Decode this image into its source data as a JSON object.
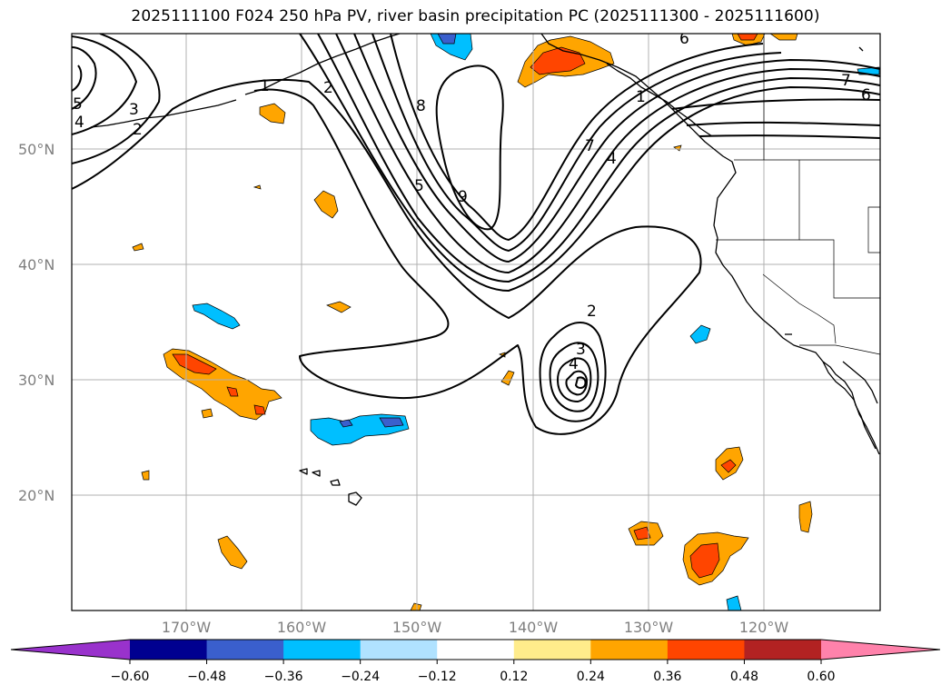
{
  "title": "2025111100 F024 250 hPa PV, river basin precipitation PC (2025111300 - 2025111600)",
  "map": {
    "lon_range": [
      -180,
      -110
    ],
    "lat_range": [
      10,
      60
    ],
    "lat_ticks": [
      {
        "value": 50,
        "label": "50°N"
      },
      {
        "value": 40,
        "label": "40°N"
      },
      {
        "value": 30,
        "label": "30°N"
      },
      {
        "value": 20,
        "label": "20°N"
      }
    ],
    "lon_ticks": [
      {
        "value": -170,
        "label": "170°W"
      },
      {
        "value": -160,
        "label": "160°W"
      },
      {
        "value": -150,
        "label": "150°W"
      },
      {
        "value": -140,
        "label": "140°W"
      },
      {
        "value": -130,
        "label": "130°W"
      },
      {
        "value": -120,
        "label": "120°W"
      }
    ],
    "contour_labels": [
      "5",
      "4",
      "3",
      "2",
      "1",
      "2",
      "8",
      "5",
      "9",
      "7",
      "4",
      "2",
      "3",
      "4",
      "1",
      "6",
      "7",
      "6"
    ]
  },
  "colorbar": {
    "tick_labels": [
      "−0.60",
      "−0.48",
      "−0.36",
      "−0.24",
      "−0.12",
      "0.12",
      "0.24",
      "0.36",
      "0.48",
      "0.60"
    ],
    "colors": {
      "under": "#9932cc",
      "bins": [
        "#000090",
        "#3a5fcd",
        "#00bfff",
        "#b0e2ff",
        "#ffffff",
        "#ffec8b",
        "#ffa500",
        "#ff4500",
        "#b22222"
      ],
      "over": "#ff82ab"
    }
  },
  "colors": {
    "frame": "#000000",
    "grid": "#b0b0b0",
    "contour": "#000000",
    "coast": "#000000"
  }
}
